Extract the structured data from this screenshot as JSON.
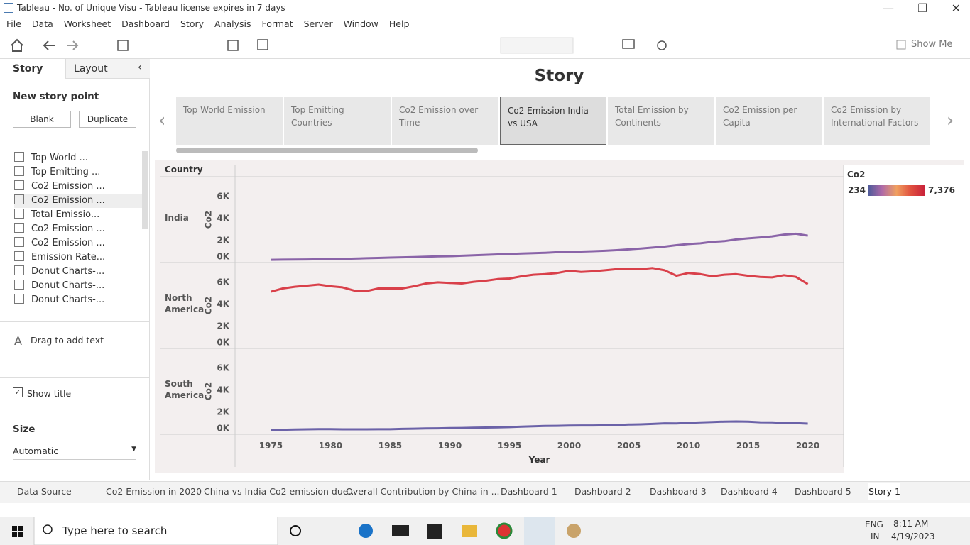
{
  "window": {
    "title": "Tableau - No. of Unique Visu - Tableau license expires in 7 days"
  },
  "menu": [
    "File",
    "Data",
    "Worksheet",
    "Dashboard",
    "Story",
    "Analysis",
    "Format",
    "Server",
    "Window",
    "Help"
  ],
  "toolbar": {
    "show_me": "Show Me"
  },
  "sidebar": {
    "tabs": [
      "Story",
      "Layout"
    ],
    "new_story_point": "New story point",
    "buttons": [
      "Blank",
      "Duplicate"
    ],
    "items": [
      "Top World ...",
      "Top Emitting ...",
      "Co2 Emission ...",
      "Co2 Emission ...",
      "Total Emissio...",
      "Co2 Emission ...",
      "Co2 Emission ...",
      "Emission Rate...",
      "Donut Charts-...",
      "Donut Charts-...",
      "Donut Charts-..."
    ],
    "drag_text": "Drag to add text",
    "show_title": "Show title",
    "size_label": "Size",
    "size_value": "Automatic"
  },
  "story": {
    "title": "Story",
    "points": [
      "Top World Emission",
      "Top Emitting Countries",
      "Co2 Emission over Time",
      "Co2 Emission India vs USA",
      "Total Emission by Continents",
      "Co2 Emission per Capita",
      "Co2 Emission by International Factors"
    ],
    "selected": 3
  },
  "chart_data": {
    "type": "line",
    "facet_label": "Country",
    "x_label": "Year",
    "y_label": "Co2",
    "x": [
      1975,
      1976,
      1977,
      1978,
      1979,
      1980,
      1981,
      1982,
      1983,
      1984,
      1985,
      1986,
      1987,
      1988,
      1989,
      1990,
      1991,
      1992,
      1993,
      1994,
      1995,
      1996,
      1997,
      1998,
      1999,
      2000,
      2001,
      2002,
      2003,
      2004,
      2005,
      2006,
      2007,
      2008,
      2009,
      2010,
      2011,
      2012,
      2013,
      2014,
      2015,
      2016,
      2017,
      2018,
      2019,
      2020
    ],
    "xlim": [
      1972,
      2023
    ],
    "xticks": [
      1975,
      1980,
      1985,
      1990,
      1995,
      2000,
      2005,
      2010,
      2015,
      2020
    ],
    "ylim": [
      0,
      7800
    ],
    "yticks": [
      {
        "value": 0,
        "label": "0K"
      },
      {
        "value": 2000,
        "label": "2K"
      },
      {
        "value": 4000,
        "label": "4K"
      },
      {
        "value": 6000,
        "label": "6K"
      }
    ],
    "series": [
      {
        "name": "India",
        "color": "#8a64a8",
        "values": [
          250,
          265,
          275,
          285,
          295,
          300,
          330,
          360,
          390,
          420,
          450,
          475,
          500,
          530,
          560,
          580,
          620,
          660,
          700,
          740,
          780,
          820,
          860,
          890,
          940,
          980,
          1000,
          1030,
          1070,
          1130,
          1200,
          1270,
          1360,
          1450,
          1580,
          1680,
          1750,
          1880,
          1950,
          2100,
          2200,
          2280,
          2380,
          2540,
          2620,
          2440
        ]
      },
      {
        "name": "North America",
        "color": "#d9404a",
        "values": [
          5150,
          5450,
          5600,
          5700,
          5800,
          5650,
          5550,
          5250,
          5200,
          5450,
          5450,
          5450,
          5650,
          5900,
          6000,
          5950,
          5900,
          6050,
          6150,
          6300,
          6350,
          6550,
          6700,
          6750,
          6850,
          7050,
          6950,
          7000,
          7100,
          7200,
          7250,
          7200,
          7300,
          7100,
          6600,
          6850,
          6750,
          6550,
          6700,
          6750,
          6600,
          6500,
          6450,
          6650,
          6500,
          5850
        ]
      },
      {
        "name": "South America",
        "color": "#6b62a8",
        "values": [
          390,
          410,
          430,
          450,
          470,
          470,
          450,
          450,
          450,
          455,
          460,
          490,
          510,
          530,
          540,
          560,
          575,
          590,
          610,
          630,
          650,
          690,
          730,
          760,
          770,
          790,
          800,
          800,
          810,
          840,
          880,
          900,
          940,
          990,
          980,
          1040,
          1080,
          1110,
          1150,
          1160,
          1140,
          1090,
          1080,
          1030,
          1010,
          970
        ]
      }
    ],
    "color_legend": {
      "title": "Co2",
      "min": 234,
      "max": {
        "value": 7376,
        "label": "7,376"
      },
      "colors": [
        "#4a5a9a",
        "#b06aa8",
        "#f0a060",
        "#e0503f",
        "#c8203a"
      ]
    }
  },
  "tabs": [
    "Data Source",
    "Co2 Emission in 2020",
    "China vs India Co2 emission due...",
    "Overall Contribution by China in ...",
    "Dashboard 1",
    "Dashboard 2",
    "Dashboard 3",
    "Dashboard 4",
    "Dashboard 5",
    "Story 1"
  ],
  "taskbar": {
    "search": "Type here to search",
    "lang": "ENG",
    "region": "IN",
    "time": "8:11 AM",
    "date": "4/19/2023"
  }
}
